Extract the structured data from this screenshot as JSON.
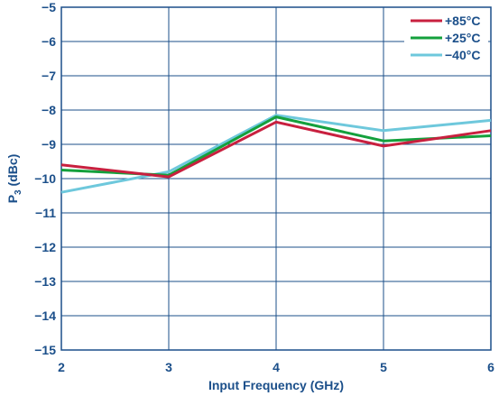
{
  "chart_data": {
    "type": "line",
    "title": "",
    "xlabel": "Input Frequency (GHz)",
    "ylabel_main": "P",
    "ylabel_sub": "3",
    "ylabel_unit": " (dBc)",
    "x": [
      2,
      3,
      4,
      5,
      6
    ],
    "xlim": [
      2,
      6
    ],
    "ylim": [
      -15,
      -5
    ],
    "xticks": [
      "2",
      "3",
      "4",
      "5",
      "6"
    ],
    "yticks": [
      "−5",
      "−6",
      "−7",
      "−8",
      "−9",
      "−10",
      "−11",
      "−12",
      "−13",
      "−14",
      "−15"
    ],
    "grid": true,
    "legend_position": "top-right",
    "series": [
      {
        "name": "+85°C",
        "color": "#c8203f",
        "values": [
          -9.6,
          -9.95,
          -8.35,
          -9.05,
          -8.6
        ]
      },
      {
        "name": "+25°C",
        "color": "#14a03c",
        "values": [
          -9.75,
          -9.9,
          -8.2,
          -8.9,
          -8.75
        ]
      },
      {
        "name": "−40°C",
        "color": "#6ec8dc",
        "values": [
          -10.4,
          -9.8,
          -8.15,
          -8.6,
          -8.3
        ]
      }
    ]
  },
  "colors": {
    "frame": "#1b4f8a",
    "grid": "#1b4f8a",
    "text": "#1b4f8a"
  }
}
